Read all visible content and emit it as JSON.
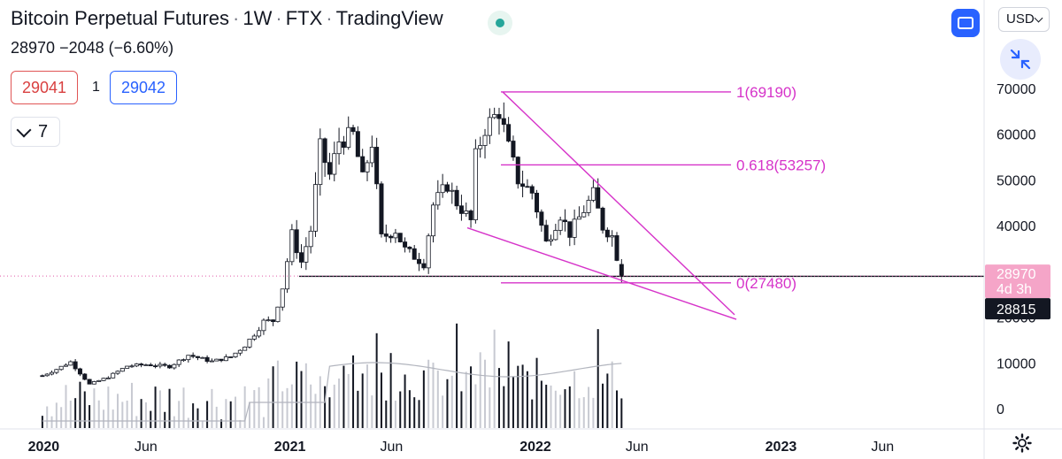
{
  "header": {
    "symbol": "Bitcoin Perpetual Futures",
    "interval": "1W",
    "exchange": "FTX",
    "source": "TradingView",
    "last": "28970",
    "change": "−2048 (−6.60%)",
    "sell_price": "29041",
    "spread": "1",
    "buy_price": "29042",
    "indicators_count": "7",
    "currency": "USD"
  },
  "colors": {
    "up": "#ffffff",
    "down": "#131722",
    "fib": "#d633c9",
    "accent": "#2962ff",
    "price_line": "#e05aa8"
  },
  "icons": [
    "fullscreen-icon",
    "shrink-icon",
    "settings-gear-icon",
    "chevron-down-icon"
  ],
  "chart_data": {
    "type": "candlestick",
    "interval": "1W",
    "y_axis_ticks": [
      "70000",
      "60000",
      "50000",
      "40000",
      "30000",
      "20000",
      "10000",
      "0"
    ],
    "ylim": [
      0,
      80000
    ],
    "x_axis_ticks": [
      "2020",
      "Jun",
      "2021",
      "Jun",
      "2022",
      "Jun",
      "2023",
      "Jun"
    ],
    "x_tick_dates": [
      "2020-01-01",
      "2020-06-01",
      "2021-01-01",
      "2021-06-01",
      "2022-01-01",
      "2022-06-01",
      "2023-01-01",
      "2023-06-01"
    ],
    "xlim": [
      "2019-10-28",
      "2023-10-30"
    ],
    "candles": [
      {
        "date": "2019-12-30",
        "close": 7200
      },
      {
        "date": "2020-01-20",
        "close": 8600
      },
      {
        "date": "2020-02-10",
        "close": 10200
      },
      {
        "date": "2020-03-09",
        "close": 5300
      },
      {
        "date": "2020-04-06",
        "close": 6900
      },
      {
        "date": "2020-05-04",
        "close": 9300
      },
      {
        "date": "2020-06-01",
        "close": 9600
      },
      {
        "date": "2020-07-06",
        "close": 9200
      },
      {
        "date": "2020-08-03",
        "close": 11700
      },
      {
        "date": "2020-09-07",
        "close": 10300
      },
      {
        "date": "2020-10-05",
        "close": 11300
      },
      {
        "date": "2020-10-26",
        "close": 13800
      },
      {
        "date": "2020-11-09",
        "close": 16300
      },
      {
        "date": "2020-11-23",
        "close": 19000
      },
      {
        "date": "2020-12-07",
        "close": 19200
      },
      {
        "date": "2020-12-21",
        "close": 26500
      },
      {
        "date": "2021-01-04",
        "close": 38000
      },
      {
        "date": "2021-01-18",
        "close": 32000
      },
      {
        "date": "2021-02-01",
        "close": 39000
      },
      {
        "date": "2021-02-15",
        "close": 57000
      },
      {
        "date": "2021-03-01",
        "close": 51000
      },
      {
        "date": "2021-03-15",
        "close": 58500
      },
      {
        "date": "2021-04-05",
        "close": 59800
      },
      {
        "date": "2021-04-19",
        "close": 50100
      },
      {
        "date": "2021-05-03",
        "close": 58200
      },
      {
        "date": "2021-05-17",
        "close": 37300
      },
      {
        "date": "2021-06-07",
        "close": 39000
      },
      {
        "date": "2021-06-21",
        "close": 34700
      },
      {
        "date": "2021-07-19",
        "close": 31800
      },
      {
        "date": "2021-08-02",
        "close": 44500
      },
      {
        "date": "2021-08-23",
        "close": 48900
      },
      {
        "date": "2021-09-06",
        "close": 45000
      },
      {
        "date": "2021-09-27",
        "close": 41000
      },
      {
        "date": "2021-10-04",
        "close": 55000
      },
      {
        "date": "2021-10-18",
        "close": 61300
      },
      {
        "date": "2021-11-08",
        "close": 65000
      },
      {
        "date": "2021-11-22",
        "close": 57000
      },
      {
        "date": "2021-12-06",
        "close": 50000
      },
      {
        "date": "2021-12-27",
        "close": 47200
      },
      {
        "date": "2022-01-17",
        "close": 36200
      },
      {
        "date": "2022-02-07",
        "close": 42400
      },
      {
        "date": "2022-02-21",
        "close": 38300
      },
      {
        "date": "2022-03-28",
        "close": 46800
      },
      {
        "date": "2022-04-11",
        "close": 39700
      },
      {
        "date": "2022-04-25",
        "close": 37700
      },
      {
        "date": "2022-05-09",
        "close": 28970
      }
    ],
    "volume_ylim": [
      0,
      80000
    ],
    "fibonacci": [
      {
        "label": "1(69190)",
        "value": 69190
      },
      {
        "label": "0.618(53257)",
        "value": 53257
      },
      {
        "label": "0(27480)",
        "value": 27480
      }
    ],
    "price_labels": [
      {
        "label": "28970",
        "sub": "4d 3h",
        "value": 28970
      },
      {
        "label": "28815",
        "value": 22000
      }
    ],
    "support_level": 29000
  }
}
